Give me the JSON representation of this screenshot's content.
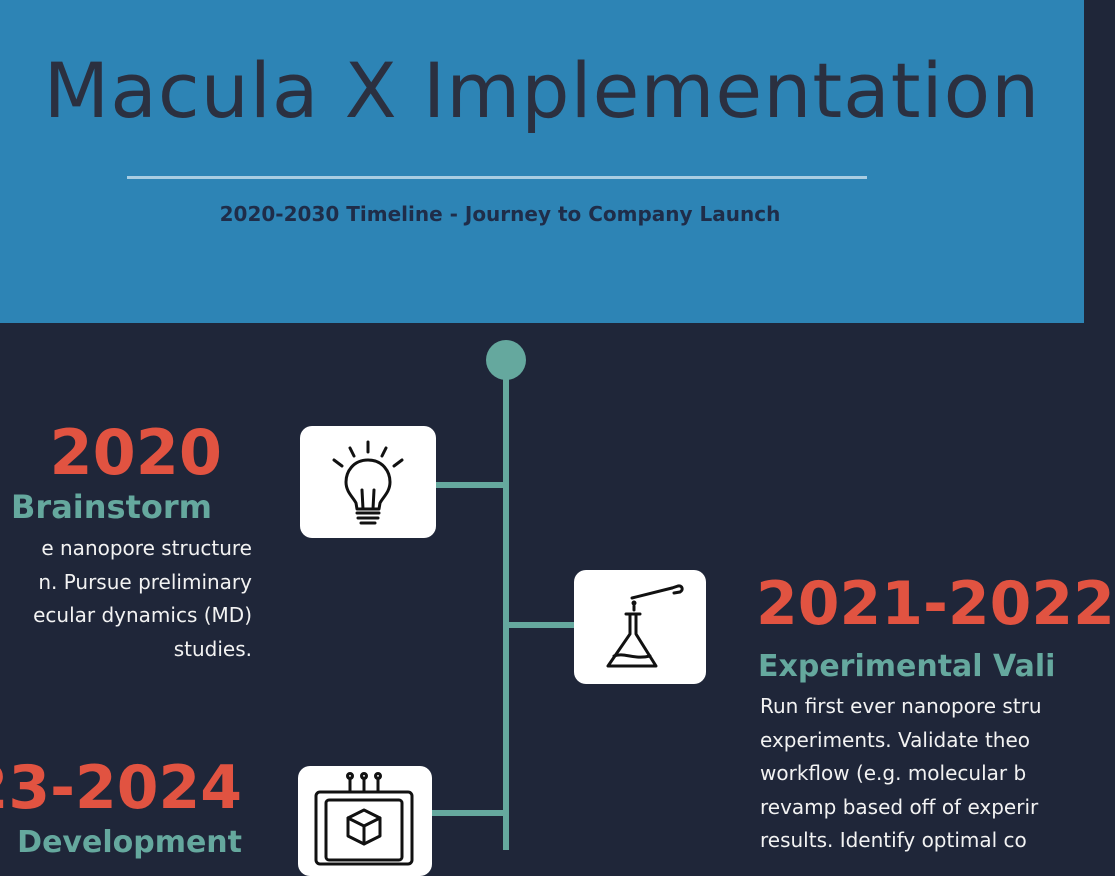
{
  "header": {
    "title": "Macula X Implementation",
    "subtitle": "2020-2030 Timeline - Journey to Company Launch"
  },
  "colors": {
    "header_bg": "#2d84b5",
    "body_bg": "#1f2639",
    "accent_teal": "#65a89e",
    "year_red": "#e15341",
    "title_text": "#2b3040"
  },
  "milestones": [
    {
      "year": "2020",
      "phase": "Brainstorm",
      "icon": "lightbulb-icon",
      "description": [
        "e nanopore structure",
        "n. Pursue preliminary",
        "ecular dynamics (MD)",
        "studies."
      ]
    },
    {
      "year": "2021-2022",
      "phase": "Experimental Vali",
      "icon": "flask-dropper-icon",
      "description": [
        "Run first ever nanopore stru",
        "experiments. Validate theo",
        "workflow (e.g. molecular b",
        "revamp based off of experir",
        "results. Identify optimal co"
      ]
    },
    {
      "year": "23-2024",
      "phase": "Development",
      "icon": "chip-cube-icon",
      "description": []
    }
  ]
}
